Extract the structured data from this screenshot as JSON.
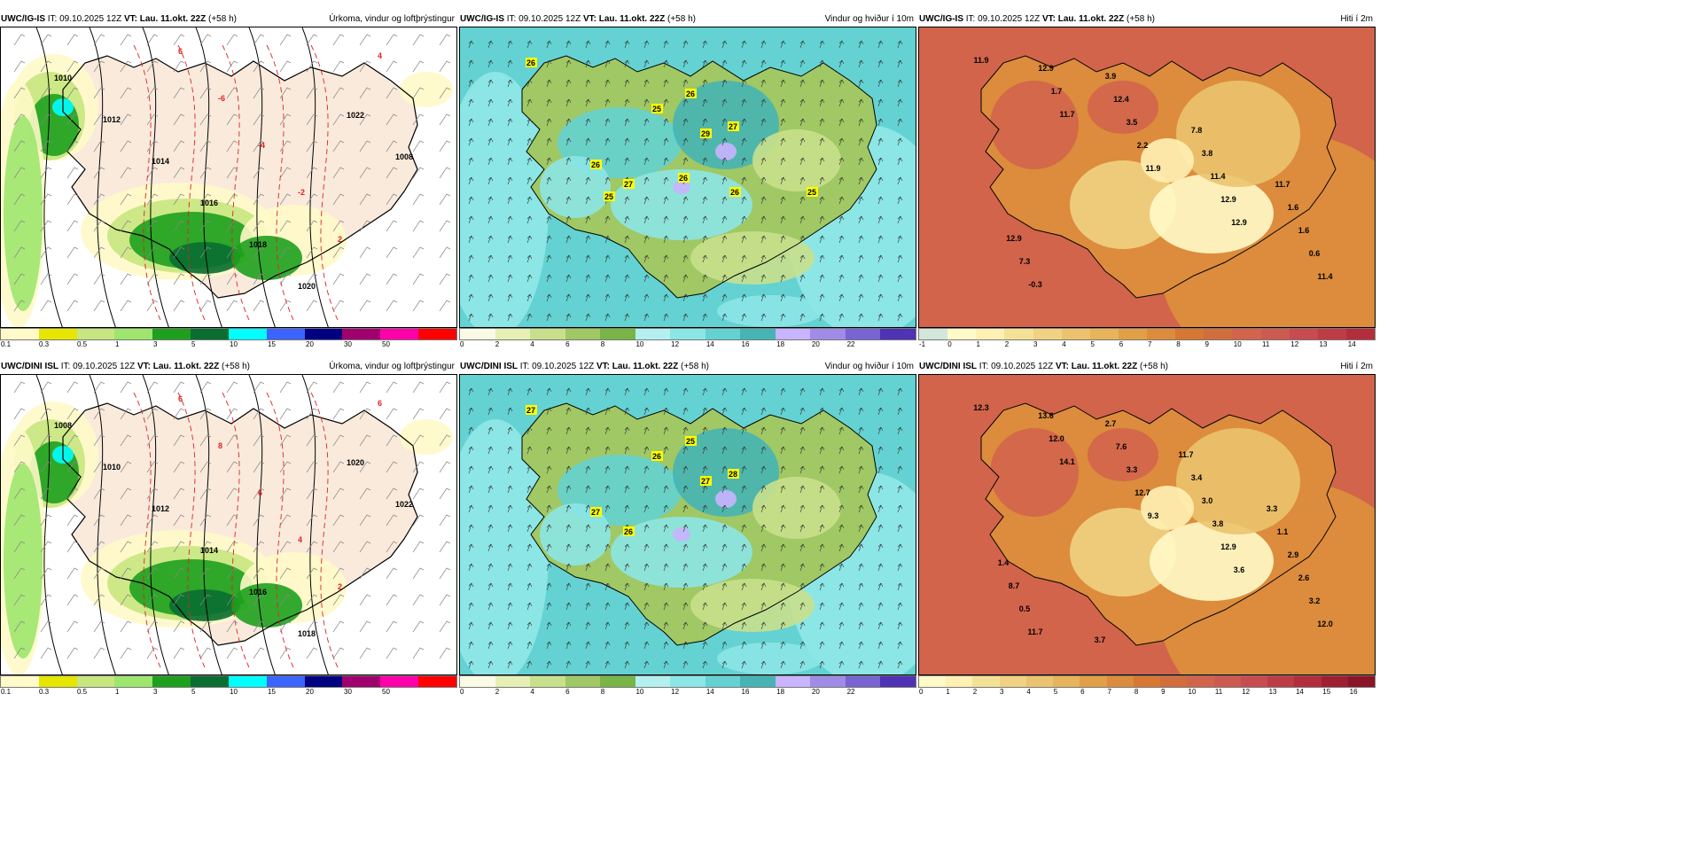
{
  "panels": [
    {
      "model": "UWC/IG-IS",
      "it": "IT: 09.10.2025 12Z",
      "vt_label": "VT:",
      "vt": "Lau. 11.okt. 22Z",
      "lead": "(+58 h)",
      "field": "Úrkoma, vindur og loftþrýstingur",
      "ticks": [
        "0.1",
        "0.3",
        "0.5",
        "1",
        "3",
        "5",
        "10",
        "15",
        "20",
        "30",
        "50"
      ],
      "colors": [
        "#fffac8",
        "#e6e600",
        "#c8e680",
        "#9ee66e",
        "#1ea01e",
        "#0a6e32",
        "#00ffff",
        "#3c64ff",
        "#000080",
        "#a0006e",
        "#ff00aa",
        "#ff0000"
      ],
      "contours": [
        "1010",
        "1012",
        "1014",
        "1016",
        "1018",
        "1020",
        "1022",
        "1008"
      ],
      "temps": [
        "6",
        "-6",
        "-4",
        "-2",
        "2",
        "4"
      ]
    },
    {
      "model": "UWC/IG-IS",
      "it": "IT: 09.10.2025 12Z",
      "vt_label": "VT:",
      "vt": "Lau. 11.okt. 22Z",
      "lead": "(+58 h)",
      "field": "Vindur og hviður í 10m",
      "ticks": [
        "0",
        "2",
        "4",
        "6",
        "8",
        "10",
        "12",
        "14",
        "16",
        "18",
        "20",
        "22"
      ],
      "colors": [
        "#fafae6",
        "#e6f0b4",
        "#c8e08c",
        "#a0c864",
        "#78b446",
        "#b4f0f0",
        "#8ce6e6",
        "#64d2d2",
        "#46b4b4",
        "#c8b4ff",
        "#a08ce6",
        "#7864d2",
        "#5032b4"
      ],
      "gusts": [
        "26",
        "26",
        "25",
        "29",
        "27",
        "26",
        "27",
        "26",
        "25",
        "26",
        "25"
      ]
    },
    {
      "model": "UWC/IG-IS",
      "it": "IT: 09.10.2025 12Z",
      "vt_label": "VT:",
      "vt": "Lau. 11.okt. 22Z",
      "lead": "(+58 h)",
      "field": "Hiti í 2m",
      "ticks": [
        "-1",
        "0",
        "1",
        "2",
        "3",
        "4",
        "5",
        "6",
        "7",
        "8",
        "9",
        "10",
        "11",
        "12",
        "13",
        "14"
      ],
      "colors": [
        "#d2e6dc",
        "#fffac8",
        "#fff0b4",
        "#f5e196",
        "#f0d282",
        "#ebc36e",
        "#e6b45a",
        "#e1a046",
        "#dc8c3c",
        "#d77832",
        "#d26e3c",
        "#d2644b",
        "#cd5a50",
        "#c84b50",
        "#be3c46",
        "#b42d3c"
      ],
      "temps": [
        "11.9",
        "11.7",
        "11.9",
        "12.9",
        "11.4",
        "1.7",
        "2.2",
        "12.9",
        "0.6",
        "12.9",
        "3.5",
        "11.4",
        "1.6",
        "-0.3",
        "12.4",
        "3.8",
        "1.6",
        "7.3",
        "3.9",
        "7.8",
        "11.7",
        "12.9"
      ]
    },
    {
      "model": "UWC/DINI ISL",
      "it": "IT: 09.10.2025 12Z",
      "vt_label": "VT:",
      "vt": "Lau. 11.okt. 22Z",
      "lead": "(+58 h)",
      "field": "Úrkoma, vindur og loftþrýstingur",
      "ticks": [
        "0.1",
        "0.3",
        "0.5",
        "1",
        "3",
        "5",
        "10",
        "15",
        "20",
        "30",
        "50"
      ],
      "colors": [
        "#fffac8",
        "#e6e600",
        "#c8e680",
        "#9ee66e",
        "#1ea01e",
        "#0a6e32",
        "#00ffff",
        "#3c64ff",
        "#000080",
        "#a0006e",
        "#ff00aa",
        "#ff0000"
      ],
      "contours": [
        "1008",
        "1010",
        "1012",
        "1014",
        "1016",
        "1018",
        "1020",
        "1022"
      ],
      "temps": [
        "6",
        "8",
        "6",
        "4",
        "2",
        "6"
      ]
    },
    {
      "model": "UWC/DINI ISL",
      "it": "IT: 09.10.2025 12Z",
      "vt_label": "VT:",
      "vt": "Lau. 11.okt. 22Z",
      "lead": "(+58 h)",
      "field": "Vindur og hviður í 10m",
      "ticks": [
        "0",
        "2",
        "4",
        "6",
        "8",
        "10",
        "12",
        "14",
        "16",
        "18",
        "20",
        "22"
      ],
      "colors": [
        "#fafae6",
        "#e6f0b4",
        "#c8e08c",
        "#a0c864",
        "#78b446",
        "#b4f0f0",
        "#8ce6e6",
        "#64d2d2",
        "#46b4b4",
        "#c8b4ff",
        "#a08ce6",
        "#7864d2",
        "#5032b4"
      ],
      "gusts": [
        "27",
        "25",
        "26",
        "27",
        "28",
        "27",
        "26"
      ]
    },
    {
      "model": "UWC/DINI ISL",
      "it": "IT: 09.10.2025 12Z",
      "vt_label": "VT:",
      "vt": "Lau. 11.okt. 22Z",
      "lead": "(+58 h)",
      "field": "Hiti í 2m",
      "ticks": [
        "0",
        "1",
        "2",
        "3",
        "4",
        "5",
        "6",
        "7",
        "8",
        "9",
        "10",
        "11",
        "12",
        "13",
        "14",
        "15",
        "16"
      ],
      "colors": [
        "#fffac8",
        "#fff0b4",
        "#f5e196",
        "#f0d282",
        "#ebc36e",
        "#e6b45a",
        "#e1a046",
        "#dc8c3c",
        "#d77832",
        "#d26e3c",
        "#d2644b",
        "#cd5a50",
        "#c84b50",
        "#be3c46",
        "#b42d3c",
        "#a01e32",
        "#8c1428"
      ],
      "temps": [
        "12.3",
        "14.1",
        "9.3",
        "3.6",
        "12.0",
        "12.0",
        "12.7",
        "12.9",
        "3.2",
        "13.6",
        "3.3",
        "3.8",
        "2.6",
        "11.7",
        "7.6",
        "3.0",
        "2.9",
        "0.5",
        "2.7",
        "3.4",
        "1.1",
        "8.7",
        "3.7",
        "11.7",
        "3.3",
        "1.4"
      ]
    }
  ]
}
